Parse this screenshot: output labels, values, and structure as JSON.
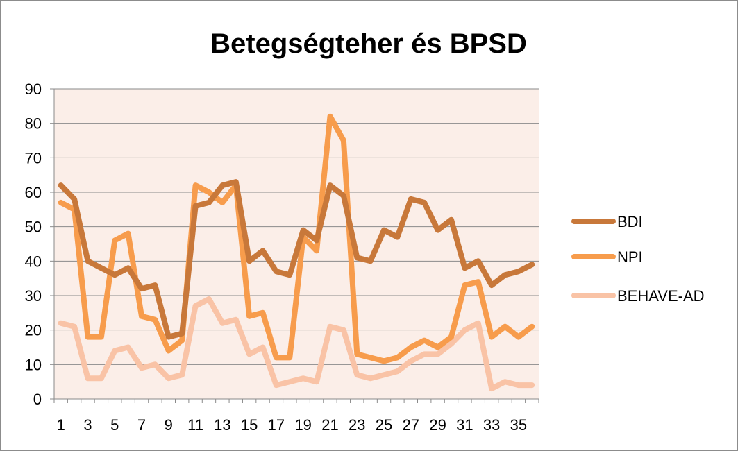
{
  "chart_data": {
    "type": "line",
    "title": "Betegségteher és BPSD",
    "xlabel": "",
    "ylabel": "",
    "ylim": [
      0,
      90
    ],
    "y_ticks": [
      0,
      10,
      20,
      30,
      40,
      50,
      60,
      70,
      80,
      90
    ],
    "x": [
      1,
      2,
      3,
      4,
      5,
      6,
      7,
      8,
      9,
      10,
      11,
      12,
      13,
      14,
      15,
      16,
      17,
      18,
      19,
      20,
      21,
      22,
      23,
      24,
      25,
      26,
      27,
      28,
      29,
      30,
      31,
      32,
      33,
      34,
      35,
      36
    ],
    "x_tick_labels": [
      "1",
      "3",
      "5",
      "7",
      "9",
      "11",
      "13",
      "15",
      "17",
      "19",
      "21",
      "23",
      "25",
      "27",
      "29",
      "31",
      "33",
      "35"
    ],
    "grid": true,
    "legend_position": "right",
    "plot_background": "#fbeee8",
    "series": [
      {
        "name": "BDI",
        "color": "#c8783a",
        "values": [
          62,
          58,
          40,
          38,
          36,
          38,
          32,
          33,
          18,
          19,
          56,
          57,
          62,
          63,
          40,
          43,
          37,
          36,
          49,
          46,
          62,
          59,
          41,
          40,
          49,
          47,
          58,
          57,
          49,
          52,
          38,
          40,
          33,
          36,
          37,
          39
        ]
      },
      {
        "name": "NPI",
        "color": "#f79c4c",
        "values": [
          57,
          55,
          18,
          18,
          46,
          48,
          24,
          23,
          14,
          17,
          62,
          60,
          57,
          62,
          24,
          25,
          12,
          12,
          47,
          43,
          82,
          75,
          13,
          12,
          11,
          12,
          15,
          17,
          15,
          18,
          33,
          34,
          18,
          21,
          18,
          21
        ]
      },
      {
        "name": "BEHAVE-AD",
        "color": "#f9c3a6",
        "values": [
          22,
          21,
          6,
          6,
          14,
          15,
          9,
          10,
          6,
          7,
          27,
          29,
          22,
          23,
          13,
          15,
          4,
          5,
          6,
          5,
          21,
          20,
          7,
          6,
          7,
          8,
          11,
          13,
          13,
          16,
          20,
          22,
          3,
          5,
          4,
          4
        ]
      }
    ]
  }
}
